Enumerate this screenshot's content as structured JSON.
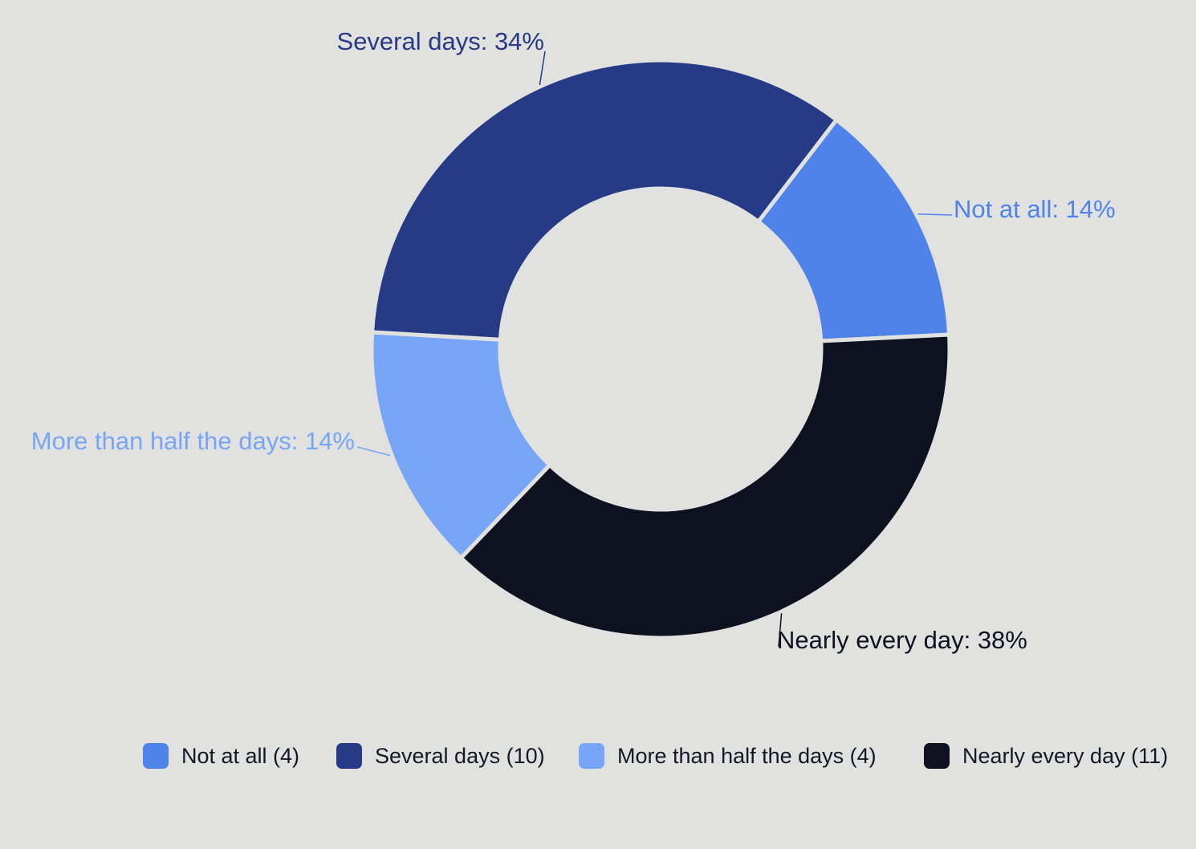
{
  "chart_data": {
    "type": "pie",
    "donut": true,
    "title": "",
    "slices": [
      {
        "label": "Not at all",
        "count": 4,
        "percent": 14,
        "color": "#4f83ea",
        "data_label": "Not at all: 14%",
        "legend_label": "Not at all (4)"
      },
      {
        "label": "Several days",
        "count": 10,
        "percent": 34,
        "color": "#263a85",
        "data_label": "Several days: 34%",
        "legend_label": "Several days (10)"
      },
      {
        "label": "More than half the days",
        "count": 4,
        "percent": 14,
        "color": "#76a6f5",
        "data_label": "More than half the days: 14%",
        "legend_label": "More than half the days (4)"
      },
      {
        "label": "Nearly every day",
        "count": 11,
        "percent": 38,
        "color": "#0e1120",
        "data_label": "Nearly every day: 38%",
        "legend_label": "Nearly every day (11)"
      }
    ],
    "legend_position": "bottom"
  }
}
